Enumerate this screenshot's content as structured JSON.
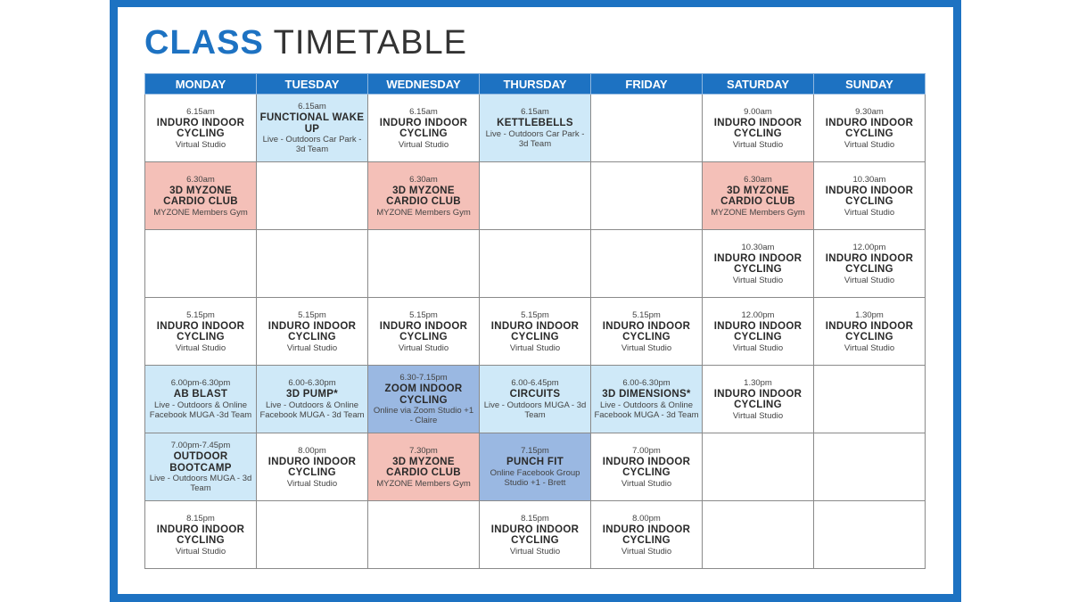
{
  "title": {
    "bold": "CLASS",
    "rest": "TIMETABLE"
  },
  "days": [
    "MONDAY",
    "TUESDAY",
    "WEDNESDAY",
    "THURSDAY",
    "FRIDAY",
    "SATURDAY",
    "SUNDAY"
  ],
  "colors": {
    "frame": "#1d72c2",
    "header": "#1d72c2",
    "light": "#cfe9f8",
    "pink": "#f4c0b8",
    "blue": "#9ab8e2"
  },
  "rows": [
    [
      {
        "time": "6.15am",
        "name": "INDURO INDOOR CYCLING",
        "loc": "Virtual Studio",
        "color": "white"
      },
      {
        "time": "6.15am",
        "name": "FUNCTIONAL WAKE UP",
        "loc": "Live - Outdoors Car Park - 3d Team",
        "color": "light"
      },
      {
        "time": "6.15am",
        "name": "INDURO INDOOR CYCLING",
        "loc": "Virtual Studio",
        "color": "white"
      },
      {
        "time": "6.15am",
        "name": "KETTLEBELLS",
        "loc": "Live - Outdoors Car Park - 3d Team",
        "color": "light"
      },
      {
        "time": "",
        "name": "",
        "loc": "",
        "color": "white"
      },
      {
        "time": "9.00am",
        "name": "INDURO INDOOR CYCLING",
        "loc": "Virtual Studio",
        "color": "white"
      },
      {
        "time": "9.30am",
        "name": "INDURO INDOOR CYCLING",
        "loc": "Virtual Studio",
        "color": "white"
      }
    ],
    [
      {
        "time": "6.30am",
        "name": "3D MYZONE CARDIO CLUB",
        "loc": "MYZONE Members Gym",
        "color": "pink"
      },
      {
        "time": "",
        "name": "",
        "loc": "",
        "color": "white"
      },
      {
        "time": "6.30am",
        "name": "3D MYZONE CARDIO CLUB",
        "loc": "MYZONE Members Gym",
        "color": "pink"
      },
      {
        "time": "",
        "name": "",
        "loc": "",
        "color": "white"
      },
      {
        "time": "",
        "name": "",
        "loc": "",
        "color": "white"
      },
      {
        "time": "6.30am",
        "name": "3D MYZONE CARDIO CLUB",
        "loc": "MYZONE Members Gym",
        "color": "pink"
      },
      {
        "time": "10.30am",
        "name": "INDURO INDOOR CYCLING",
        "loc": "Virtual Studio",
        "color": "white"
      }
    ],
    [
      {
        "time": "",
        "name": "",
        "loc": "",
        "color": "white"
      },
      {
        "time": "",
        "name": "",
        "loc": "",
        "color": "white"
      },
      {
        "time": "",
        "name": "",
        "loc": "",
        "color": "white"
      },
      {
        "time": "",
        "name": "",
        "loc": "",
        "color": "white"
      },
      {
        "time": "",
        "name": "",
        "loc": "",
        "color": "white"
      },
      {
        "time": "10.30am",
        "name": "INDURO INDOOR CYCLING",
        "loc": "Virtual Studio",
        "color": "white"
      },
      {
        "time": "12.00pm",
        "name": "INDURO INDOOR CYCLING",
        "loc": "Virtual Studio",
        "color": "white"
      }
    ],
    [
      {
        "time": "5.15pm",
        "name": "INDURO INDOOR CYCLING",
        "loc": "Virtual Studio",
        "color": "white"
      },
      {
        "time": "5.15pm",
        "name": "INDURO INDOOR CYCLING",
        "loc": "Virtual Studio",
        "color": "white"
      },
      {
        "time": "5.15pm",
        "name": "INDURO INDOOR CYCLING",
        "loc": "Virtual Studio",
        "color": "white"
      },
      {
        "time": "5.15pm",
        "name": "INDURO INDOOR CYCLING",
        "loc": "Virtual Studio",
        "color": "white"
      },
      {
        "time": "5.15pm",
        "name": "INDURO INDOOR CYCLING",
        "loc": "Virtual Studio",
        "color": "white"
      },
      {
        "time": "12.00pm",
        "name": "INDURO INDOOR CYCLING",
        "loc": "Virtual Studio",
        "color": "white"
      },
      {
        "time": "1.30pm",
        "name": "INDURO INDOOR CYCLING",
        "loc": "Virtual Studio",
        "color": "white"
      }
    ],
    [
      {
        "time": "6.00pm-6.30pm",
        "name": "AB BLAST",
        "loc": "Live - Outdoors & Online Facebook MUGA -3d Team",
        "color": "light"
      },
      {
        "time": "6.00-6.30pm",
        "name": "3D PUMP*",
        "loc": "Live - Outdoors & Online Facebook MUGA - 3d Team",
        "color": "light"
      },
      {
        "time": "6.30-7.15pm",
        "name": "ZOOM INDOOR CYCLING",
        "loc": "Online via Zoom Studio +1 - Claire",
        "color": "blue"
      },
      {
        "time": "6.00-6.45pm",
        "name": "CIRCUITS",
        "loc": "Live - Outdoors MUGA - 3d Team",
        "color": "light"
      },
      {
        "time": "6.00-6.30pm",
        "name": "3D DIMENSIONS*",
        "loc": "Live - Outdoors & Online Facebook MUGA - 3d Team",
        "color": "light"
      },
      {
        "time": "1.30pm",
        "name": "INDURO INDOOR CYCLING",
        "loc": "Virtual Studio",
        "color": "white"
      },
      {
        "time": "",
        "name": "",
        "loc": "",
        "color": "white"
      }
    ],
    [
      {
        "time": "7.00pm-7.45pm",
        "name": "OUTDOOR BOOTCAMP",
        "loc": "Live - Outdoors MUGA - 3d Team",
        "color": "light"
      },
      {
        "time": "8.00pm",
        "name": "INDURO INDOOR CYCLING",
        "loc": "Virtual Studio",
        "color": "white"
      },
      {
        "time": "7.30pm",
        "name": "3D MYZONE CARDIO CLUB",
        "loc": "MYZONE Members Gym",
        "color": "pink"
      },
      {
        "time": "7.15pm",
        "name": "PUNCH FIT",
        "loc": "Online Facebook Group Studio +1 - Brett",
        "color": "blue"
      },
      {
        "time": "7.00pm",
        "name": "INDURO INDOOR CYCLING",
        "loc": "Virtual Studio",
        "color": "white"
      },
      {
        "time": "",
        "name": "",
        "loc": "",
        "color": "white"
      },
      {
        "time": "",
        "name": "",
        "loc": "",
        "color": "white"
      }
    ],
    [
      {
        "time": "8.15pm",
        "name": "INDURO INDOOR CYCLING",
        "loc": "Virtual Studio",
        "color": "white"
      },
      {
        "time": "",
        "name": "",
        "loc": "",
        "color": "white"
      },
      {
        "time": "",
        "name": "",
        "loc": "",
        "color": "white"
      },
      {
        "time": "8.15pm",
        "name": "INDURO INDOOR CYCLING",
        "loc": "Virtual Studio",
        "color": "white"
      },
      {
        "time": "8.00pm",
        "name": "INDURO INDOOR CYCLING",
        "loc": "Virtual Studio",
        "color": "white"
      },
      {
        "time": "",
        "name": "",
        "loc": "",
        "color": "white"
      },
      {
        "time": "",
        "name": "",
        "loc": "",
        "color": "white"
      }
    ]
  ]
}
